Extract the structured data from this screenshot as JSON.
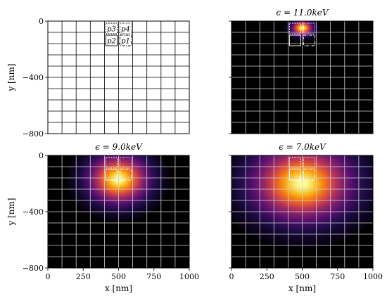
{
  "chart_data": [
    {
      "type": "heatmap",
      "title": "",
      "xlabel": "",
      "ylabel": "y [nm]",
      "xlim": [
        0,
        1000
      ],
      "ylim": [
        -800,
        0
      ],
      "background": "#ffffff",
      "grid_color": "#000000",
      "yticks": [
        0,
        -400,
        -800
      ],
      "yticklabels": [
        "0",
        "−400",
        "−800"
      ],
      "xticks": [],
      "xticklabels": [],
      "pixel_labels": [
        "p3",
        "p4",
        "p2",
        "p1"
      ],
      "beam": null
    },
    {
      "type": "heatmap",
      "title": "ϵ = 11.0keV",
      "xlabel": "",
      "ylabel": "",
      "xlim": [
        0,
        1000
      ],
      "ylim": [
        -800,
        0
      ],
      "background": "#000000",
      "grid_color": "#cfcfcf",
      "yticks": [
        0,
        -400,
        -800
      ],
      "yticklabels": [],
      "xticks": [],
      "xticklabels": [],
      "pixel_labels": [],
      "beam": {
        "center_x": 500,
        "center_y": -50,
        "spread_x": 50,
        "spread_y": 35,
        "intensity": 1.0
      }
    },
    {
      "type": "heatmap",
      "title": "ϵ = 9.0keV",
      "xlabel": "x [nm]",
      "ylabel": "y [nm]",
      "xlim": [
        0,
        1000
      ],
      "ylim": [
        -800,
        0
      ],
      "background": "#000000",
      "grid_color": "#cfcfcf",
      "yticks": [
        0,
        -400,
        -800
      ],
      "yticklabels": [
        "0",
        "−400",
        "−800"
      ],
      "xticks": [
        0,
        250,
        500,
        750,
        1000
      ],
      "xticklabels": [
        "0",
        "250",
        "500",
        "750",
        "1000"
      ],
      "pixel_labels": [],
      "beam": {
        "center_x": 500,
        "center_y": -170,
        "spread_x": 140,
        "spread_y": 115,
        "intensity": 1.0
      }
    },
    {
      "type": "heatmap",
      "title": "ϵ = 7.0keV",
      "xlabel": "x [nm]",
      "ylabel": "",
      "xlim": [
        0,
        1000
      ],
      "ylim": [
        -800,
        0
      ],
      "background": "#000000",
      "grid_color": "#cfcfcf",
      "yticks": [
        0,
        -400,
        -800
      ],
      "yticklabels": [],
      "xticks": [
        0,
        250,
        500,
        750,
        1000
      ],
      "xticklabels": [
        "0",
        "250",
        "500",
        "750",
        "1000"
      ],
      "pixel_labels": [],
      "beam": {
        "center_x": 500,
        "center_y": -200,
        "spread_x": 230,
        "spread_y": 175,
        "intensity": 1.0
      }
    }
  ]
}
